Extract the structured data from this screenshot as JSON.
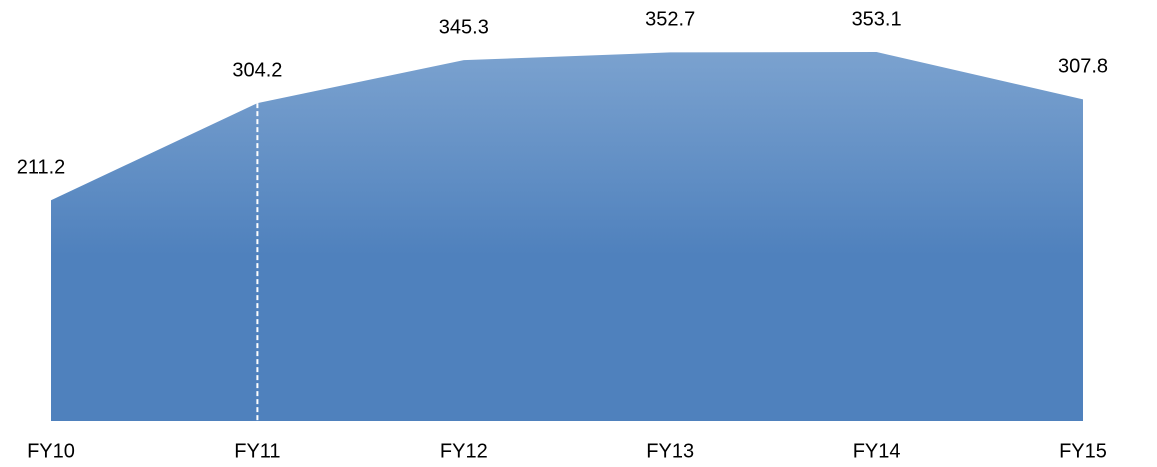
{
  "chart_data": {
    "type": "area",
    "categories": [
      "FY10",
      "FY11",
      "FY12",
      "FY13",
      "FY14",
      "FY15"
    ],
    "values": [
      211.2,
      304.2,
      345.3,
      352.7,
      353.1,
      307.8
    ],
    "color": "#4f81bd",
    "ylim": [
      0,
      400
    ]
  }
}
